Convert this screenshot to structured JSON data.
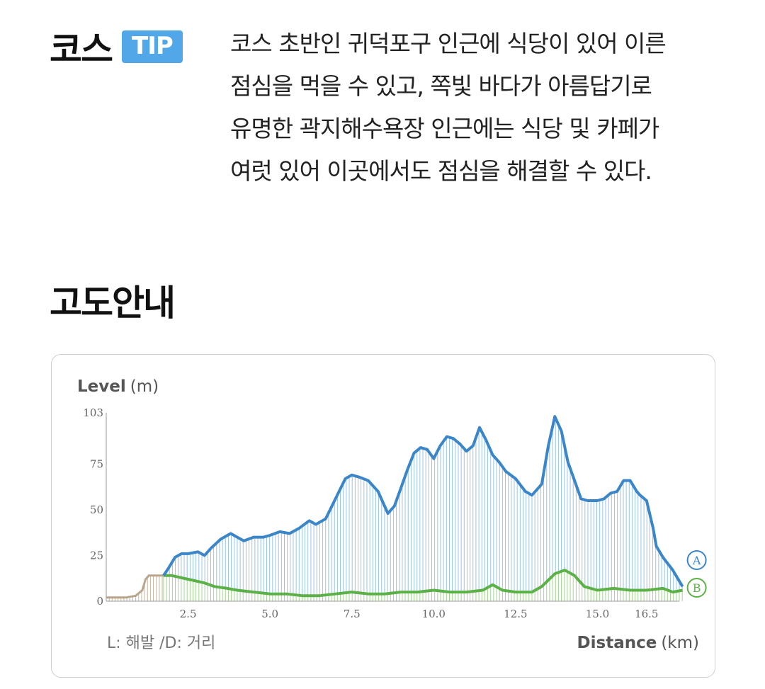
{
  "tip": {
    "title": "코스",
    "badge": "TIP",
    "lines": [
      "코스 초반인 귀덕포구 인근에 식당이 있어 이른",
      "점심을 먹을 수 있고, 쪽빛 바다가 아름답기로",
      "유명한 곽지해수욕장 인근에는 식당 및 카페가",
      "여럿 있어 이곳에서도 점심을 해결할 수 있다."
    ]
  },
  "altitude": {
    "title": "고도안내"
  },
  "chart_data": {
    "type": "area",
    "ylabel_bold": "Level",
    "ylabel_unit": "(m)",
    "xlabel_bold": "Distance",
    "xlabel_unit": "(km)",
    "note": "L: 해발 /D: 거리",
    "ylim": [
      0,
      103
    ],
    "xlim": [
      0,
      17.5
    ],
    "y_ticks": [
      0,
      25,
      50,
      75,
      103
    ],
    "y_tick_labels": [
      "0",
      "25",
      "50",
      "75",
      "103"
    ],
    "x_ticks": [
      2.5,
      5.0,
      7.5,
      10.0,
      12.5,
      15.0,
      16.5
    ],
    "x_tick_labels": [
      "2.5",
      "5.0",
      "7.5",
      "10.0",
      "12.5",
      "15.0",
      "16.5"
    ],
    "colors": {
      "level": "#3b86c8",
      "level_fill": "#8fbde3",
      "distance": "#5cb146",
      "distance_fill": "#9ccf8a",
      "start": "#b8a58c"
    },
    "series": [
      {
        "name": "L",
        "marker": "A",
        "x": [
          1.75,
          1.9,
          2.1,
          2.3,
          2.5,
          2.8,
          3.0,
          3.2,
          3.5,
          3.8,
          4.0,
          4.2,
          4.5,
          4.8,
          5.0,
          5.3,
          5.6,
          5.9,
          6.2,
          6.4,
          6.7,
          7.0,
          7.3,
          7.5,
          7.7,
          8.0,
          8.3,
          8.6,
          8.8,
          9.0,
          9.2,
          9.4,
          9.6,
          9.8,
          10.0,
          10.2,
          10.4,
          10.6,
          10.8,
          11.0,
          11.2,
          11.4,
          11.6,
          11.8,
          12.0,
          12.2,
          12.5,
          12.8,
          13.0,
          13.3,
          13.5,
          13.7,
          13.9,
          14.1,
          14.3,
          14.5,
          14.7,
          15.0,
          15.2,
          15.4,
          15.6,
          15.8,
          16.0,
          16.2,
          16.3,
          16.5,
          16.7,
          16.8,
          17.0,
          17.3,
          17.6
        ],
        "y": [
          14,
          18,
          24,
          26,
          26,
          27,
          25,
          29,
          34,
          37,
          35,
          33,
          35,
          35,
          36,
          38,
          37,
          40,
          44,
          42,
          45,
          56,
          67,
          69,
          68,
          66,
          60,
          48,
          52,
          62,
          72,
          81,
          84,
          83,
          78,
          85,
          90,
          89,
          86,
          82,
          85,
          95,
          88,
          80,
          76,
          71,
          67,
          60,
          58,
          64,
          85,
          101,
          93,
          76,
          66,
          56,
          55,
          55,
          56,
          59,
          60,
          66,
          66,
          60,
          58,
          55,
          40,
          30,
          24,
          17,
          8
        ]
      },
      {
        "name": "D",
        "marker": "B",
        "x": [
          1.75,
          2.0,
          2.5,
          3.0,
          3.3,
          3.7,
          4.0,
          4.5,
          5.0,
          5.5,
          6.0,
          6.5,
          7.0,
          7.5,
          8.0,
          8.5,
          9.0,
          9.5,
          10.0,
          10.5,
          11.0,
          11.5,
          11.8,
          12.1,
          12.5,
          13.0,
          13.3,
          13.7,
          14.0,
          14.3,
          14.6,
          15.0,
          15.5,
          16.0,
          16.5,
          17.0,
          17.3,
          17.6
        ],
        "y": [
          14,
          14,
          12,
          10,
          8,
          7,
          6,
          5,
          4,
          4,
          3,
          3,
          4,
          5,
          4,
          4,
          5,
          5,
          6,
          5,
          5,
          6,
          9,
          6,
          5,
          5,
          8,
          15,
          17,
          14,
          8,
          6,
          7,
          6,
          6,
          7,
          5,
          6
        ]
      }
    ],
    "start_segment": {
      "x": [
        0.0,
        0.6,
        0.9,
        1.1,
        1.2,
        1.3,
        1.5,
        1.75
      ],
      "y": [
        2,
        2,
        3,
        6,
        12,
        14,
        14,
        14
      ]
    }
  }
}
